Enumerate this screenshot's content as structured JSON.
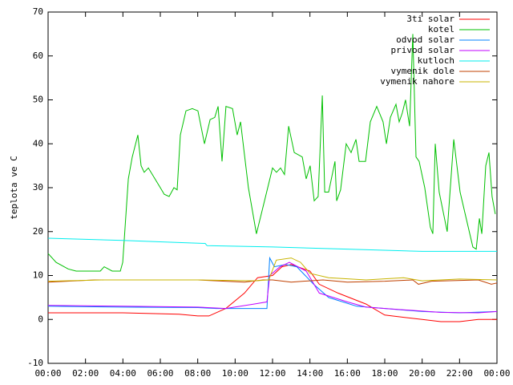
{
  "chart_data": {
    "type": "line",
    "ylabel": "teplota ve C",
    "xlim": [
      0,
      24
    ],
    "xticks": [
      {
        "value": 0,
        "label": "00:00"
      },
      {
        "value": 2,
        "label": "02:00"
      },
      {
        "value": 4,
        "label": "04:00"
      },
      {
        "value": 6,
        "label": "06:00"
      },
      {
        "value": 8,
        "label": "08:00"
      },
      {
        "value": 10,
        "label": "10:00"
      },
      {
        "value": 12,
        "label": "12:00"
      },
      {
        "value": 14,
        "label": "14:00"
      },
      {
        "value": 16,
        "label": "16:00"
      },
      {
        "value": 18,
        "label": "18:00"
      },
      {
        "value": 20,
        "label": "20:00"
      },
      {
        "value": 22,
        "label": "22:00"
      },
      {
        "value": 24,
        "label": "00:00"
      }
    ],
    "ylim": [
      -10,
      70
    ],
    "yticks": [
      -10,
      0,
      10,
      20,
      30,
      40,
      50,
      60,
      70
    ],
    "legend": "top-right",
    "series": [
      {
        "name": "3ti solar",
        "color": "#ff0000",
        "x": [
          0,
          4,
          7,
          8,
          8.6,
          9.5,
          10.5,
          11.2,
          12,
          12.5,
          13,
          14,
          14.5,
          15.5,
          17,
          18,
          20,
          21,
          22,
          23,
          24
        ],
        "values": [
          1.5,
          1.5,
          1.2,
          0.8,
          0.8,
          2.5,
          6,
          9.5,
          10,
          12,
          12.5,
          11,
          8,
          6,
          3.5,
          1,
          0,
          -0.5,
          -0.5,
          0,
          0
        ]
      },
      {
        "name": "kotel",
        "color": "#00c000",
        "x": [
          0,
          0.43,
          1.07,
          1.5,
          2.14,
          2.79,
          3.0,
          3.43,
          3.86,
          3.99,
          4.29,
          4.5,
          4.8,
          4.97,
          5.14,
          5.36,
          6.0,
          6.21,
          6.47,
          6.73,
          6.9,
          7.07,
          7.37,
          7.71,
          8.01,
          8.36,
          8.66,
          8.91,
          9.09,
          9.3,
          9.51,
          9.86,
          10.11,
          10.29,
          10.71,
          11.14,
          11.57,
          12.0,
          12.21,
          12.43,
          12.64,
          12.86,
          13.16,
          13.59,
          13.8,
          14.01,
          14.23,
          14.44,
          14.66,
          14.79,
          15.0,
          15.34,
          15.43,
          15.64,
          15.94,
          16.2,
          16.46,
          16.63,
          16.97,
          17.23,
          17.57,
          17.91,
          18.09,
          18.3,
          18.6,
          18.77,
          18.94,
          19.11,
          19.33,
          19.5,
          19.67,
          19.84,
          20.14,
          20.44,
          20.57,
          20.7,
          20.91,
          21.34,
          21.69,
          22.03,
          22.71,
          22.89,
          23.06,
          23.19,
          23.4,
          23.57,
          23.74,
          23.91
        ],
        "values": [
          15,
          13,
          11.5,
          11,
          11,
          11,
          12,
          11,
          11,
          13,
          32,
          37,
          42,
          35,
          33.5,
          34.5,
          30,
          28.5,
          28,
          30,
          29.5,
          42,
          47.5,
          48,
          47.5,
          40,
          45.5,
          46,
          48.5,
          36,
          48.5,
          48,
          42,
          45,
          30,
          19.5,
          27,
          34.5,
          33.5,
          34.5,
          33,
          44,
          38,
          37,
          32,
          35,
          27,
          28,
          51,
          29,
          29,
          36,
          27,
          29.5,
          40,
          38,
          41,
          36,
          36,
          45,
          48.5,
          45,
          40,
          46,
          49,
          45,
          47,
          50,
          44,
          65,
          37,
          36,
          30,
          21,
          19.5,
          40,
          29,
          20,
          41,
          29,
          16.5,
          16,
          23,
          19.5,
          35,
          38,
          28,
          24
        ]
      },
      {
        "name": "odvod solar",
        "color": "#0080ff",
        "x": [
          0,
          4,
          8,
          9,
          11.7,
          11.85,
          12.1,
          12.7,
          13.3,
          14.2,
          15,
          16.5,
          18,
          20,
          22,
          24
        ],
        "values": [
          3,
          2.8,
          2.7,
          2.5,
          2.5,
          14,
          12,
          12.5,
          12,
          8,
          5,
          3,
          2.5,
          1.8,
          1.5,
          1.8
        ]
      },
      {
        "name": "privod solar",
        "color": "#c000ff",
        "x": [
          0,
          4,
          8,
          9.5,
          11,
          11.7,
          11.85,
          12.4,
          12.9,
          13.8,
          14.5,
          16,
          17,
          19,
          21,
          23,
          24
        ],
        "values": [
          3.2,
          3,
          2.8,
          2.5,
          3.5,
          4,
          10,
          12,
          13,
          11,
          6,
          4,
          2.8,
          2.2,
          1.6,
          1.5,
          1.8
        ]
      },
      {
        "name": "kutloch",
        "color": "#00eeee",
        "x": [
          0,
          4,
          7,
          8.4,
          8.5,
          12,
          16,
          20,
          24
        ],
        "values": [
          18.5,
          18,
          17.5,
          17.3,
          16.8,
          16.5,
          16,
          15.5,
          15.5
        ]
      },
      {
        "name": "vymenik dole",
        "color": "#c04000",
        "x": [
          0,
          2.5,
          8,
          10.5,
          11.5,
          12,
          13,
          14.7,
          16,
          18,
          19.5,
          19.8,
          20.5,
          23,
          23.7,
          24
        ],
        "values": [
          8.5,
          9,
          9,
          8.5,
          9,
          9,
          8.5,
          9,
          8.5,
          8.7,
          9,
          8,
          8.7,
          9,
          8,
          8.3
        ]
      },
      {
        "name": "vymenik nahore",
        "color": "#c8b400",
        "x": [
          0,
          3,
          8,
          11,
          11.8,
          12.2,
          13,
          13.5,
          14,
          15,
          17,
          19,
          20,
          22,
          24
        ],
        "values": [
          8.7,
          9,
          9,
          8.8,
          9,
          13.5,
          14,
          13,
          10.5,
          9.5,
          9,
          9.5,
          8.8,
          9.2,
          9
        ]
      }
    ]
  }
}
